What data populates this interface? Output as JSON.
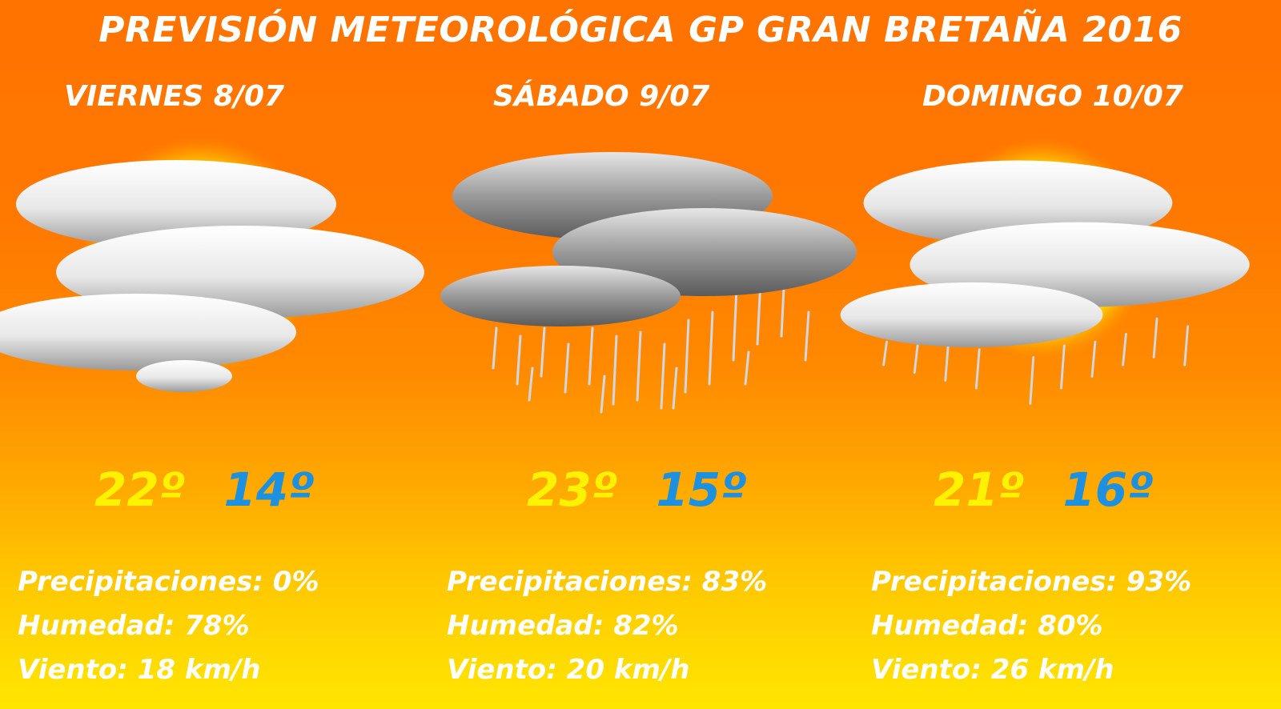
{
  "title": "PREVISIÓN METEOROLÓGICA GP GRAN BRETAÑA 2016",
  "days": [
    {
      "label": "VIERNES 8/07",
      "icon": "partly-cloudy-icon",
      "temp_max": "22º",
      "temp_min": "14º",
      "precipitation": "Precipitaciones: 0%",
      "humidity": "Humedad: 78%",
      "wind": "Viento: 18 km/h"
    },
    {
      "label": "SÁBADO 9/07",
      "icon": "rain-cloud-icon",
      "temp_max": "23º",
      "temp_min": "15º",
      "precipitation": "Precipitaciones: 83%",
      "humidity": "Humedad: 82%",
      "wind": "Viento: 20 km/h"
    },
    {
      "label": "DOMINGO 10/07",
      "icon": "sun-cloud-rain-icon",
      "temp_max": "21º",
      "temp_min": "16º",
      "precipitation": "Precipitaciones: 93%",
      "humidity": "Humedad: 80%",
      "wind": "Viento: 26 km/h"
    }
  ],
  "colors": {
    "background_top": "#ff7300",
    "background_bottom": "#ffe600",
    "text": "#ffffff",
    "temp_max": "#fff200",
    "temp_min": "#1e90e0"
  }
}
